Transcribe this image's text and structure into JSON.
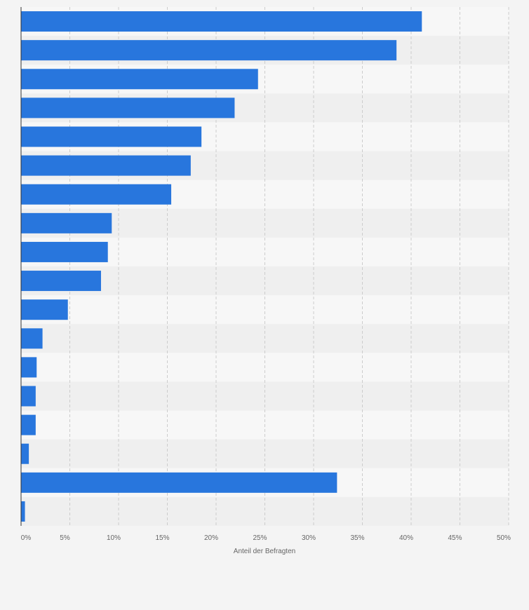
{
  "chart_data": {
    "type": "bar",
    "orientation": "horizontal",
    "title": "",
    "xlabel": "Anteil der Befragten",
    "ylabel": "",
    "xlim": [
      0,
      50
    ],
    "x_ticks": [
      0,
      5,
      10,
      15,
      20,
      25,
      30,
      35,
      40,
      45,
      50
    ],
    "x_tick_labels": [
      "0%",
      "5%",
      "10%",
      "15%",
      "20%",
      "25%",
      "30%",
      "35%",
      "40%",
      "45%",
      "50%"
    ],
    "category_labels_visible": false,
    "values": [
      41.1,
      38.5,
      24.3,
      21.9,
      18.5,
      17.4,
      15.4,
      9.3,
      8.9,
      8.2,
      4.8,
      2.2,
      1.6,
      1.5,
      1.5,
      0.8,
      32.4,
      0.4
    ],
    "grid": true,
    "legend": "none",
    "colors": {
      "bar": "#2876dd",
      "band_light": "#f7f7f7",
      "band_dark": "#efefef",
      "background": "#f4f4f4",
      "grid": "#cccccc",
      "axis": "#333333",
      "text": "#666666"
    }
  }
}
